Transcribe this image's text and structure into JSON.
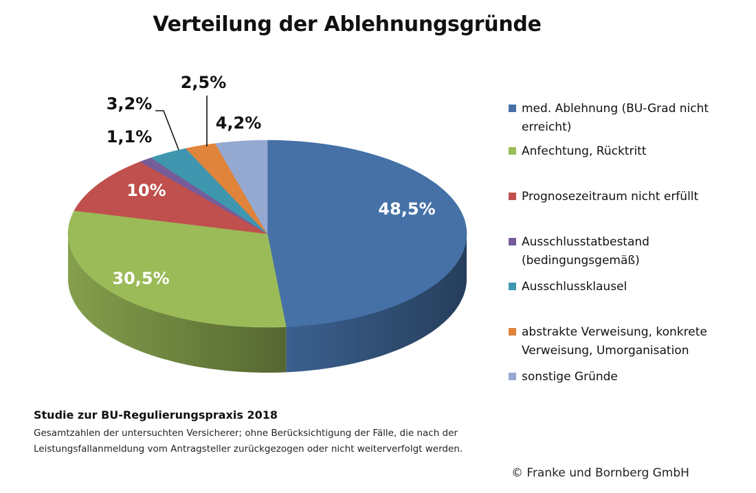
{
  "chart_data": {
    "type": "pie",
    "style": "3d",
    "title": "Verteilung der Ablehnungsgründe",
    "legend_position": "right",
    "start": "12-o'clock",
    "direction": "clockwise",
    "slices": [
      {
        "label": "med. Ablehnung (BU-Grad nicht erreicht)",
        "value": 48.5,
        "data_label": "48,5%",
        "color": "#4571a7",
        "label_color": "#ffffff"
      },
      {
        "label": "Anfechtung, Rücktritt",
        "value": 30.5,
        "data_label": "30,5%",
        "color": "#9bbb59",
        "label_color": "#ffffff"
      },
      {
        "label": "Prognosezeitraum nicht erfüllt",
        "value": 10,
        "data_label": "10%",
        "color": "#c0504d",
        "label_color": "#ffffff"
      },
      {
        "label": "Ausschlusstatbestand (bedingungsgemäß)",
        "value": 1.1,
        "data_label": "1,1%",
        "color": "#775c9a",
        "label_color": "#111111"
      },
      {
        "label": "Ausschlussklausel",
        "value": 3.2,
        "data_label": "3,2%",
        "color": "#3e97ae",
        "label_color": "#111111"
      },
      {
        "label": "abstrakte Verweisung, konkrete Verweisung, Umorganisation",
        "value": 2.5,
        "data_label": "2,5%",
        "color": "#e0833b",
        "label_color": "#111111"
      },
      {
        "label": "sonstige Gründe",
        "value": 4.2,
        "data_label": "4,2%",
        "color": "#95a9d0",
        "label_color": "#111111"
      }
    ]
  },
  "legend": {
    "items": [
      {
        "label": "med. Ablehnung (BU-Grad nicht erreicht)",
        "color": "#4571a7"
      },
      {
        "label": "Anfechtung, Rücktritt",
        "color": "#9bbb59"
      },
      {
        "label": "Prognosezeitraum nicht erfüllt",
        "color": "#c0504d"
      },
      {
        "label": "Ausschlusstatbestand (bedingungsgemäß)",
        "color": "#775c9a"
      },
      {
        "label": "Ausschlussklausel",
        "color": "#3e97ae"
      },
      {
        "label": "abstrakte Verweisung, konkrete Verweisung, Umorganisation",
        "color": "#e0833b"
      },
      {
        "label": "sonstige Gründe",
        "color": "#95a9d0"
      }
    ]
  },
  "footer": {
    "study_title": "Studie zur BU-Regulierungspraxis 2018",
    "note": "Gesamtzahlen der untersuchten Versicherer; ohne Berücksichtigung der Fälle, die nach der Leistungsfallanmeldung vom Antragsteller zurückgezogen oder nicht weiterverfolgt werden.",
    "copyright": "© Franke und Bornberg GmbH"
  }
}
